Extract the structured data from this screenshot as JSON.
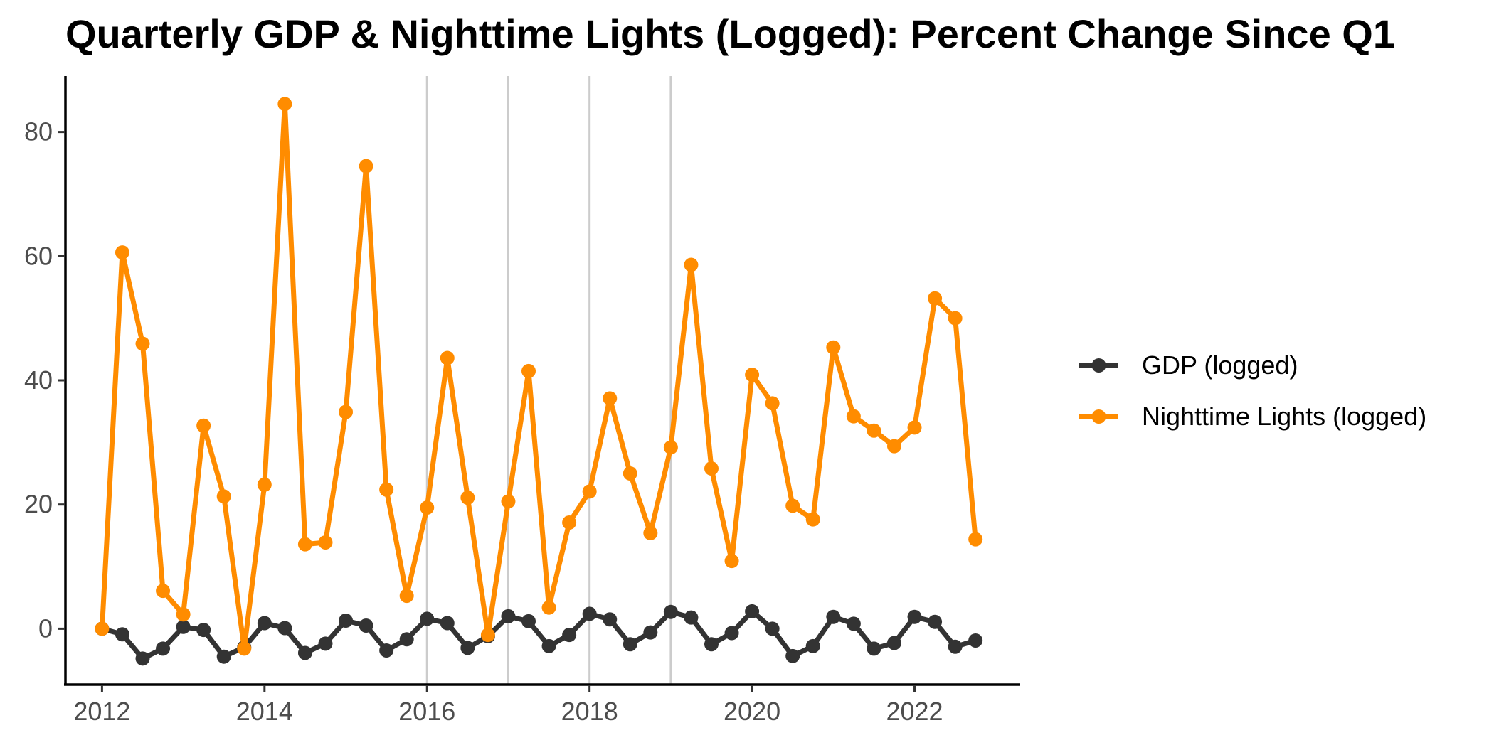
{
  "chart_data": {
    "type": "line",
    "title": "Quarterly GDP & Nighttime Lights (Logged): Percent Change Since Q1",
    "xlabel": "",
    "ylabel": "",
    "xlim": [
      2011.55,
      2023.3
    ],
    "ylim": [
      -9,
      89
    ],
    "x_ticks": [
      2012,
      2014,
      2016,
      2018,
      2020,
      2022
    ],
    "y_ticks": [
      0,
      20,
      40,
      60,
      80
    ],
    "x_tick_labels": [
      "2012",
      "2014",
      "2016",
      "2018",
      "2020",
      "2022"
    ],
    "y_tick_labels": [
      "0",
      "20",
      "40",
      "60",
      "80"
    ],
    "vertical_reference_lines": [
      2016,
      2017,
      2018,
      2019
    ],
    "grid": false,
    "legend_position": "right",
    "x": [
      2012.0,
      2012.25,
      2012.5,
      2012.75,
      2013.0,
      2013.25,
      2013.5,
      2013.75,
      2014.0,
      2014.25,
      2014.5,
      2014.75,
      2015.0,
      2015.25,
      2015.5,
      2015.75,
      2016.0,
      2016.25,
      2016.5,
      2016.75,
      2017.0,
      2017.25,
      2017.5,
      2017.75,
      2018.0,
      2018.25,
      2018.5,
      2018.75,
      2019.0,
      2019.25,
      2019.5,
      2019.75,
      2020.0,
      2020.25,
      2020.5,
      2020.75,
      2021.0,
      2021.25,
      2021.5,
      2021.75,
      2022.0,
      2022.25,
      2022.5,
      2022.75
    ],
    "series": [
      {
        "name": "GDP (logged)",
        "color": "#333333",
        "values": [
          0.0,
          -0.9,
          -4.8,
          -3.2,
          0.3,
          -0.2,
          -4.5,
          -3.0,
          0.9,
          0.1,
          -3.9,
          -2.4,
          1.3,
          0.5,
          -3.5,
          -1.7,
          1.6,
          0.9,
          -3.1,
          -1.2,
          2.0,
          1.2,
          -2.8,
          -1.0,
          2.4,
          1.5,
          -2.5,
          -0.6,
          2.7,
          1.8,
          -2.5,
          -0.7,
          2.8,
          0.0,
          -4.4,
          -2.8,
          1.9,
          0.8,
          -3.2,
          -2.3,
          1.9,
          1.1,
          -2.9,
          -1.9
        ]
      },
      {
        "name": "Nighttime Lights (logged)",
        "color": "#ff8c00",
        "values": [
          0.0,
          60.6,
          45.9,
          6.1,
          2.3,
          32.7,
          21.3,
          -3.2,
          23.2,
          84.5,
          13.6,
          13.9,
          34.9,
          74.5,
          22.4,
          5.3,
          19.5,
          43.6,
          21.1,
          -1.0,
          20.5,
          41.5,
          3.4,
          17.1,
          22.1,
          37.1,
          25.0,
          15.4,
          29.2,
          58.6,
          25.8,
          10.9,
          40.9,
          36.3,
          19.8,
          17.6,
          45.3,
          34.2,
          31.9,
          29.4,
          32.4,
          53.2,
          50.0,
          14.4
        ]
      }
    ]
  }
}
